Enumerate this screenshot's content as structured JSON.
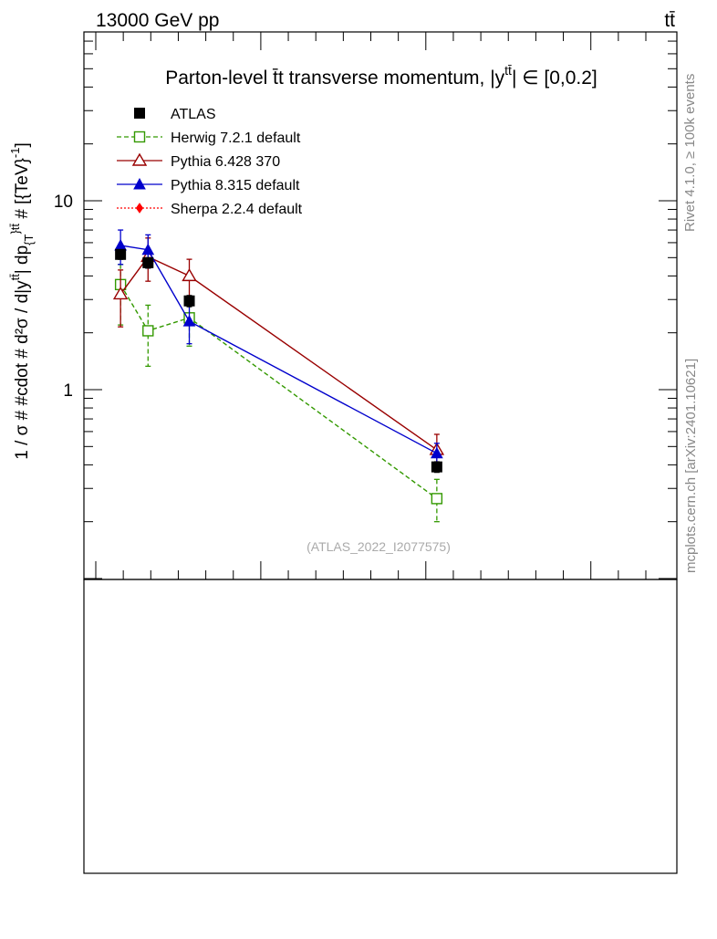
{
  "header": {
    "left_label": "13000 GeV pp",
    "right_label": "tt̄"
  },
  "side_text": {
    "rivet": "Rivet 4.1.0, ≥ 100k events",
    "mcplots": "mcplots.cern.ch [arXiv:2401.10621]"
  },
  "chart_data": {
    "type": "line",
    "title": "Parton-level t̄t transverse momentum, |y^{tt̄}| ∈ [0,0.2]",
    "title_main": "Parton-level t̄t transverse momentum, |y",
    "title_sup": "tt̄",
    "title_tail": "| ∈ [0,0.2]",
    "ylabel": "1 / σ # #cdot # d²σ / d|y^{tt̄}| dp_{T}^{tt̄} # [{TeV}^{-1}]",
    "ylabel_main": "1 / σ # #cdot # d²σ / d|y",
    "ylabel_sup1": "tt̄",
    "ylabel_mid": "| dp",
    "ylabel_sub": "{T",
    "ylabel_sup2": "}tt̄",
    "ylabel_tail": " # [{TeV}",
    "ylabel_sup3": "-1",
    "ylabel_end": "]",
    "xlabel": "",
    "yscale": "log",
    "ylim": [
      0.1,
      80
    ],
    "xlim": [
      0,
      1.02
    ],
    "y_tick_labels": [
      "1",
      "10"
    ],
    "watermark": "(ATLAS_2022_I2077575)",
    "legend_position": "top-left",
    "series": [
      {
        "name": "ATLAS",
        "style": "data",
        "color": "#000000",
        "marker": "square-filled",
        "x": [
          0.045,
          0.095,
          0.17,
          0.62
        ],
        "y": [
          5.2,
          4.7,
          2.95,
          0.39
        ],
        "err": [
          0.3,
          0.3,
          0.2,
          0.025
        ]
      },
      {
        "name": "Herwig 7.2.1 default",
        "style": "dashed",
        "color": "#339900",
        "marker": "square-open",
        "x": [
          0.045,
          0.095,
          0.17,
          0.62
        ],
        "y": [
          3.6,
          2.05,
          2.4,
          0.265
        ],
        "err_lo": [
          1.4,
          0.72,
          0.7,
          0.065
        ],
        "err_hi": [
          1.0,
          0.75,
          0.7,
          0.07
        ]
      },
      {
        "name": "Pythia 6.428 370",
        "style": "solid",
        "color": "#990000",
        "marker": "triangle-open",
        "x": [
          0.045,
          0.095,
          0.17,
          0.62
        ],
        "y": [
          3.2,
          5.05,
          4.0,
          0.48
        ],
        "err_lo": [
          1.05,
          1.3,
          1.0,
          0.08
        ],
        "err_hi": [
          1.1,
          1.3,
          0.9,
          0.1
        ]
      },
      {
        "name": "Pythia 8.315 default",
        "style": "solid",
        "color": "#0000cc",
        "marker": "triangle-filled",
        "x": [
          0.045,
          0.095,
          0.17,
          0.62
        ],
        "y": [
          5.8,
          5.5,
          2.3,
          0.46
        ],
        "err_lo": [
          1.2,
          1.1,
          0.55,
          0.06
        ],
        "err_hi": [
          1.2,
          1.1,
          0.55,
          0.06
        ]
      },
      {
        "name": "Sherpa 2.2.4 default",
        "style": "dotted",
        "color": "#ff0000",
        "marker": "diamond-filled",
        "x": [],
        "y": []
      }
    ]
  }
}
